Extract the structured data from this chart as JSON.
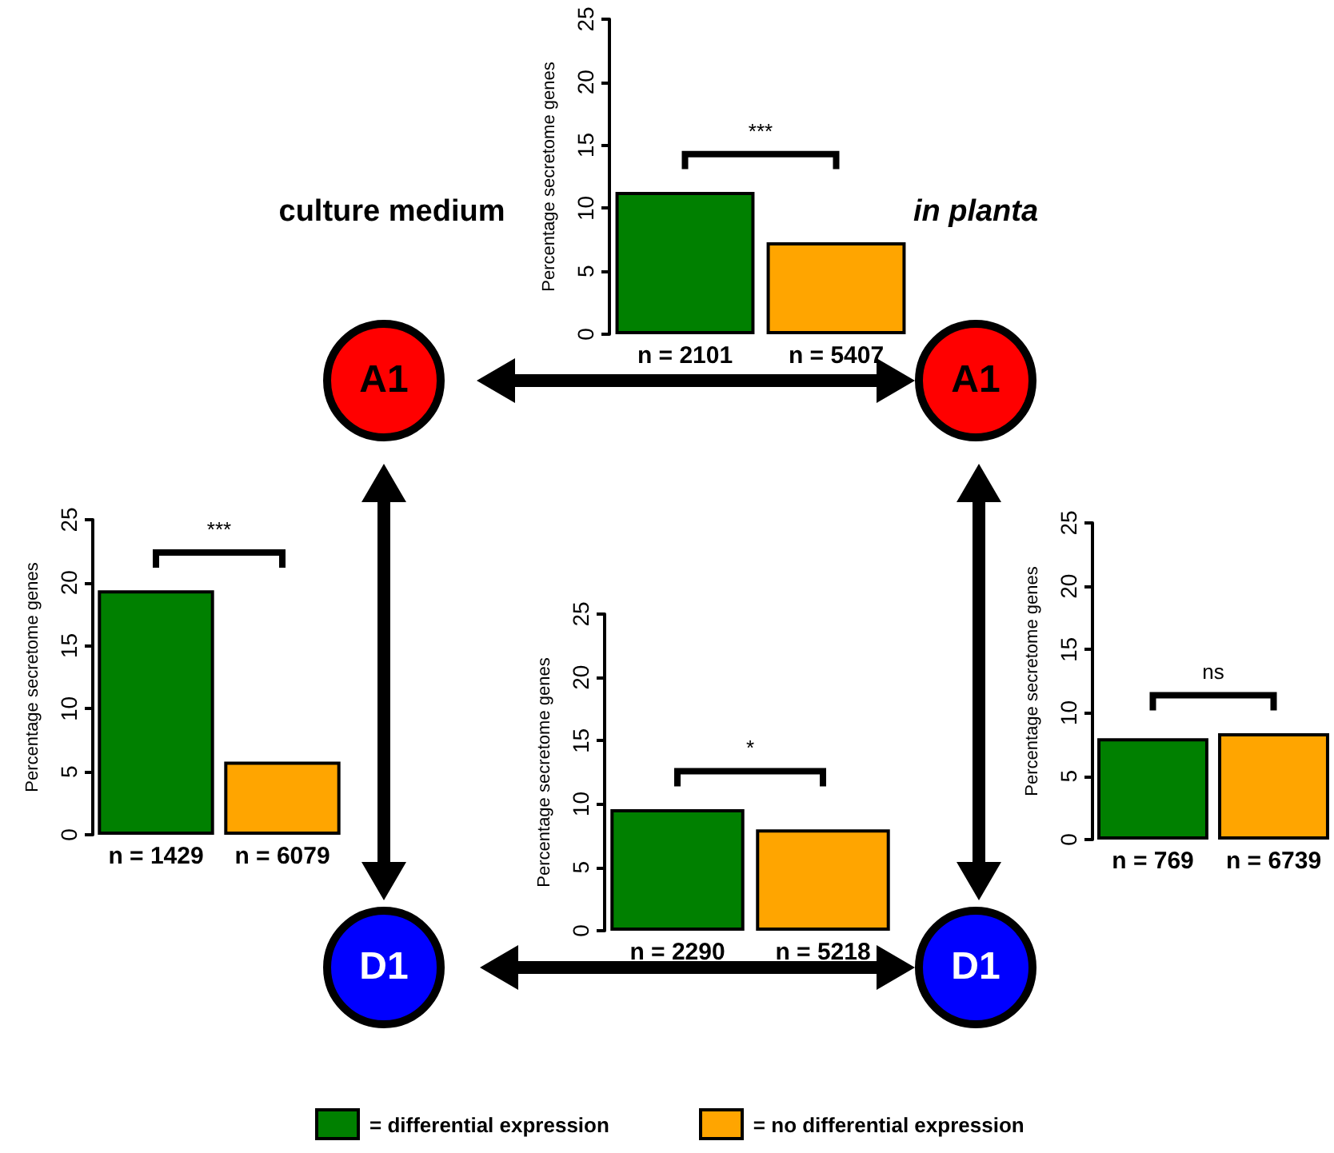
{
  "chart_data": [
    {
      "type": "bar",
      "ylabel": "Percentage secretome genes",
      "categories": [
        "n = 2101",
        "n = 5407"
      ],
      "stacked": true,
      "ylim": [
        0,
        25
      ],
      "yticks": [
        0,
        5,
        10,
        15,
        20,
        25
      ],
      "annotations": [
        "***"
      ],
      "series": [
        {
          "color": "#008000",
          "values": [
            11.3,
            null
          ]
        },
        {
          "color": "#ffa500",
          "values": [
            null,
            7.3
          ]
        }
      ]
    },
    {
      "type": "bar",
      "ylabel": "Percentage secretome genes",
      "categories": [
        "n = 1429",
        "n = 6079"
      ],
      "stacked": true,
      "ylim": [
        0,
        25
      ],
      "yticks": [
        0,
        5,
        10,
        15,
        20,
        25
      ],
      "annotations": [
        "***"
      ],
      "series": [
        {
          "color": "#008000",
          "values": [
            19.4,
            null
          ]
        },
        {
          "color": "#ffa500",
          "values": [
            null,
            5.8
          ]
        }
      ]
    },
    {
      "type": "bar",
      "ylabel": "Percentage secretome genes",
      "categories": [
        "n = 2290",
        "n = 5218"
      ],
      "stacked": true,
      "ylim": [
        0,
        25
      ],
      "yticks": [
        0,
        5,
        10,
        15,
        20,
        25
      ],
      "annotations": [
        "*"
      ],
      "legend": "bottom",
      "series": [
        {
          "name": "= differential expression",
          "color": "#008000",
          "values": [
            9.6,
            null
          ]
        },
        {
          "name": "= no differential expression",
          "color": "#ffa500",
          "values": [
            null,
            8.0
          ]
        }
      ]
    },
    {
      "type": "bar",
      "ylabel": "Percentage secretome genes",
      "categories": [
        "n = 769",
        "n = 6739"
      ],
      "stacked": true,
      "ylim": [
        0,
        25
      ],
      "yticks": [
        0,
        5,
        10,
        15,
        20,
        25
      ],
      "annotations": [
        "ns"
      ],
      "series": [
        {
          "color": "#008000",
          "values": [
            8.0,
            null
          ]
        },
        {
          "color": "#ffa500",
          "values": [
            null,
            8.4
          ]
        }
      ]
    },
    {
      "type": "other",
      "annotations": [
        "culture medium",
        "in planta",
        "A1",
        "A1",
        "D1",
        "D1"
      ]
    }
  ]
}
